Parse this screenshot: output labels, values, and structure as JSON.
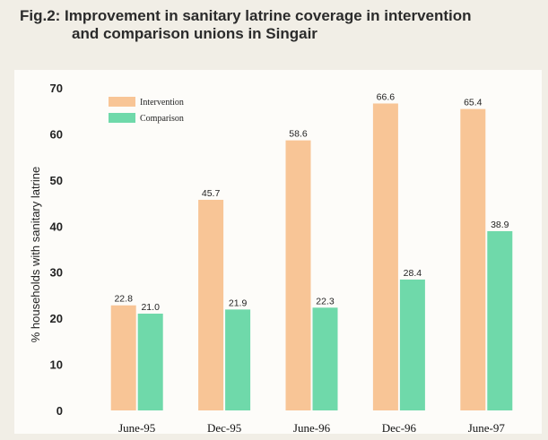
{
  "figure": {
    "title_line1": "Fig.2: Improvement in sanitary latrine coverage in intervention",
    "title_line2": "and comparison unions in Singair"
  },
  "colors": {
    "intervention": "#f8c596",
    "comparison": "#6fd9aa",
    "background": "#f1eee6",
    "panel": "#fdfcf9"
  },
  "chart_data": {
    "type": "bar",
    "title": "Fig.2: Improvement in sanitary latrine coverage in intervention and comparison unions in Singair",
    "xlabel": "",
    "ylabel": "% households with sanitary latrine",
    "categories": [
      "June-95",
      "Dec-95",
      "June-96",
      "Dec-96",
      "June-97"
    ],
    "series": [
      {
        "name": "Intervention",
        "values": [
          22.8,
          45.7,
          58.6,
          66.6,
          65.4
        ],
        "labels": [
          "22.8",
          "45.7",
          "58.6",
          "66.6",
          "65.4"
        ]
      },
      {
        "name": "Comparison",
        "values": [
          21.0,
          21.9,
          22.3,
          28.4,
          38.9
        ],
        "labels": [
          "21.0",
          "21.9",
          "22.3",
          "28.4",
          "38.9"
        ]
      }
    ],
    "ylim": [
      0,
      70
    ],
    "yticks": [
      0,
      10,
      20,
      30,
      40,
      50,
      60,
      70
    ],
    "grid": false,
    "legend_position": "top-left"
  }
}
